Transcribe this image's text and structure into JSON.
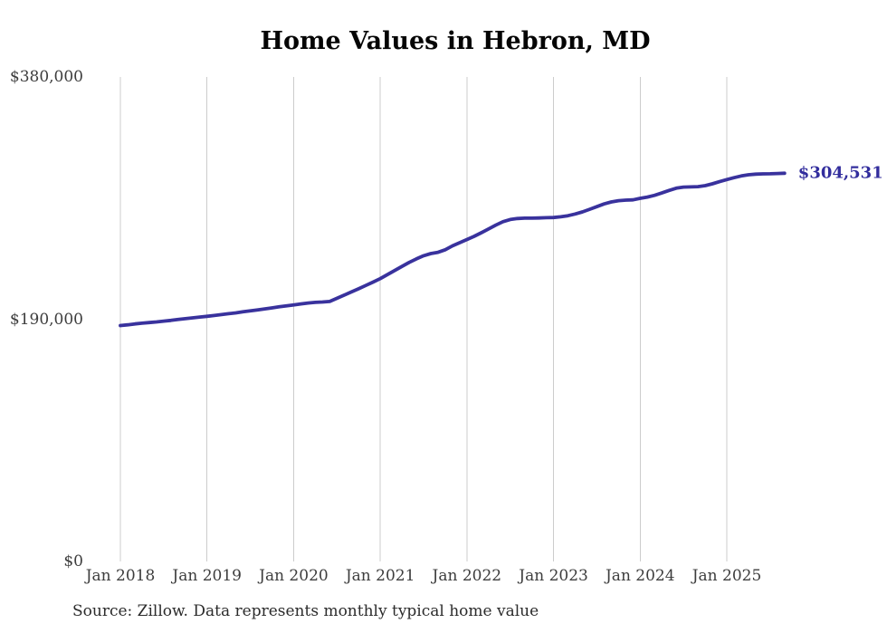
{
  "chart_data": {
    "type": "line",
    "title": "Home Values in Hebron, MD",
    "source_note": "Source: Zillow. Data represents monthly typical home value",
    "end_label": "$304,531",
    "final_value": 304531,
    "line_color": "#39329d",
    "end_label_color": "#322d9d",
    "grid_color": "#cccccc",
    "grid": "vertical-only",
    "legend": "none",
    "xlabel": "",
    "ylabel": "",
    "ylim": [
      0,
      380000
    ],
    "start_month": "2018-01",
    "end_month": "2025-09",
    "y_ticks": [
      {
        "value": 380000,
        "label": "$380,000"
      },
      {
        "value": 190000,
        "label": "$190,000"
      },
      {
        "value": 0,
        "label": "$0"
      }
    ],
    "x_ticks": [
      "Jan 2018",
      "Jan 2019",
      "Jan 2020",
      "Jan 2021",
      "Jan 2022",
      "Jan 2023",
      "Jan 2024",
      "Jan 2025"
    ],
    "x_tick_month_index_step": 12,
    "series": [
      {
        "name": "Monthly typical home value",
        "values": [
          185000,
          185600,
          186300,
          186900,
          187400,
          187900,
          188500,
          189100,
          189800,
          190400,
          191100,
          191700,
          192300,
          192900,
          193600,
          194300,
          195000,
          195800,
          196500,
          197300,
          198100,
          198900,
          199700,
          200500,
          201200,
          202000,
          202700,
          203200,
          203500,
          203900,
          206400,
          208900,
          211400,
          213900,
          216500,
          219100,
          221800,
          225000,
          228200,
          231400,
          234500,
          237300,
          239800,
          241500,
          242500,
          244500,
          247500,
          250000,
          252500,
          255000,
          257800,
          260800,
          263800,
          266500,
          268200,
          269000,
          269300,
          269300,
          269400,
          269600,
          269800,
          270300,
          271200,
          272500,
          274200,
          276200,
          278300,
          280400,
          282000,
          283000,
          283400,
          283600,
          284800,
          285800,
          287200,
          289000,
          291000,
          292800,
          293600,
          293800,
          294000,
          294800,
          296200,
          297900,
          299500,
          301000,
          302400,
          303300,
          303800,
          304000,
          304100,
          304300,
          304531
        ]
      }
    ]
  }
}
